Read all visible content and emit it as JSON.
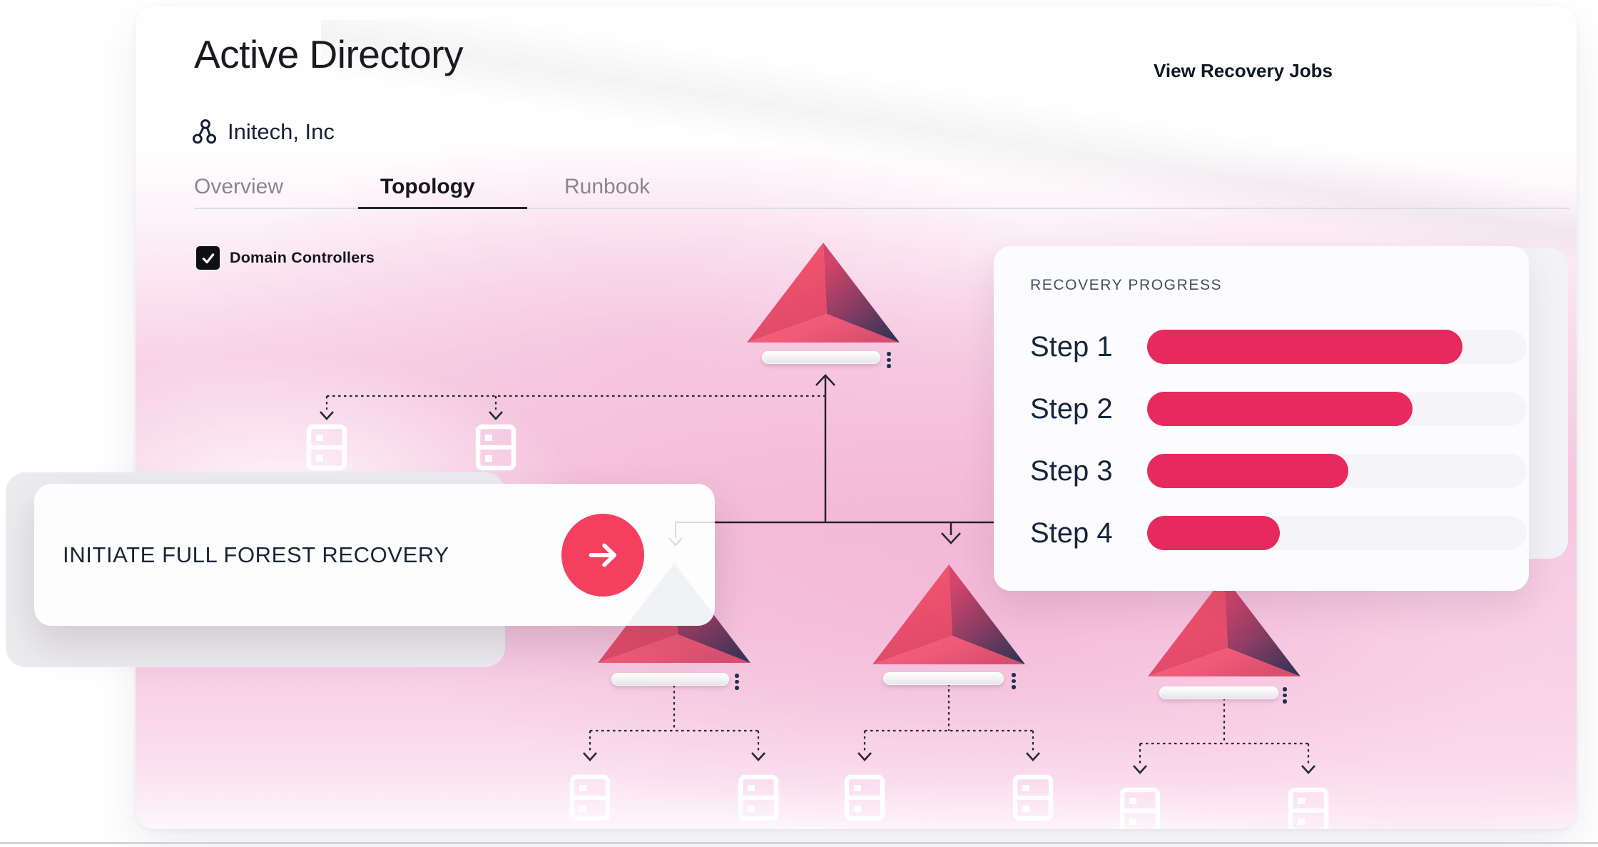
{
  "theme": {
    "accent": "#e72a5e",
    "accent-bright": "#f43f5e",
    "ink": "#1a1b21",
    "navy": "#16243c",
    "tab-inactive": "#87878f",
    "wash-pink": "#f4c2dc"
  },
  "header": {
    "title": "Active Directory",
    "link_label": "View Recovery Jobs",
    "org_icon": "org-nodes-icon",
    "org_name": "Initech, Inc"
  },
  "tabs": [
    {
      "label": "Overview",
      "active": false
    },
    {
      "label": "Topology",
      "active": true
    },
    {
      "label": "Runbook",
      "active": false
    }
  ],
  "filters": {
    "domain_controllers": {
      "label": "Domain Controllers",
      "checked": true
    }
  },
  "topology": {
    "node_icon": "pyramid-icon",
    "server_icon": "server-icon",
    "menu_icon": "kebab-menu-icon",
    "root_domain_nodes": 1,
    "root_servers": 2,
    "child_domain_nodes": 3,
    "servers_per_child_domain": 2
  },
  "cta": {
    "label": "INITIATE FULL FOREST RECOVERY",
    "icon": "arrow-right-icon"
  },
  "recovery": {
    "title": "RECOVERY PROGRESS",
    "steps": [
      {
        "label": "Step 1",
        "value": 83
      },
      {
        "label": "Step 2",
        "value": 70
      },
      {
        "label": "Step 3",
        "value": 53
      },
      {
        "label": "Step 4",
        "value": 35
      }
    ]
  },
  "chart_data": {
    "type": "bar",
    "orientation": "horizontal",
    "title": "RECOVERY PROGRESS",
    "categories": [
      "Step 1",
      "Step 2",
      "Step 3",
      "Step 4"
    ],
    "values": [
      83,
      70,
      53,
      35
    ],
    "xlabel": "",
    "ylabel": "",
    "xlim": [
      0,
      100
    ],
    "value_note": "bars are unlabeled; values are % of track length estimated from pixels",
    "bar_color": "#e72a5e",
    "track_color": "#f5f5f8",
    "grid": false,
    "legend": false
  }
}
